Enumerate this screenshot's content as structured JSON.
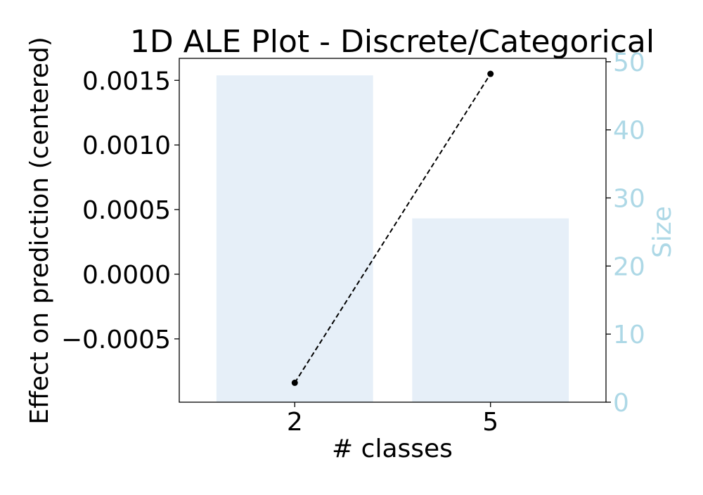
{
  "chart_data": {
    "type": "bar",
    "title": "1D ALE Plot - Discrete/Categorical",
    "xlabel": "# classes",
    "ylabel": "Effect on prediction (centered)",
    "y2label": "Size",
    "categories": [
      "2",
      "5"
    ],
    "ale_series": {
      "values": [
        -0.00084,
        0.00155
      ],
      "style": "dashed line with markers",
      "color": "#000000"
    },
    "size_series": {
      "values": [
        48,
        27
      ],
      "color": "#e6eff8"
    },
    "y_ticks": [
      0.0015,
      0.001,
      0.0005,
      0.0,
      -0.0005
    ],
    "y_tick_labels": [
      "0.0015",
      "0.0010",
      "0.0005",
      "0.0000",
      "−0.0005"
    ],
    "ylim": [
      -0.00099,
      0.00167
    ],
    "y2_ticks": [
      0,
      10,
      20,
      30,
      40,
      50
    ],
    "y2_tick_labels": [
      "0",
      "10",
      "20",
      "30",
      "40",
      "50"
    ],
    "y2lim": [
      0,
      50.5
    ],
    "y2_color": "#add8e6",
    "grid": false
  }
}
